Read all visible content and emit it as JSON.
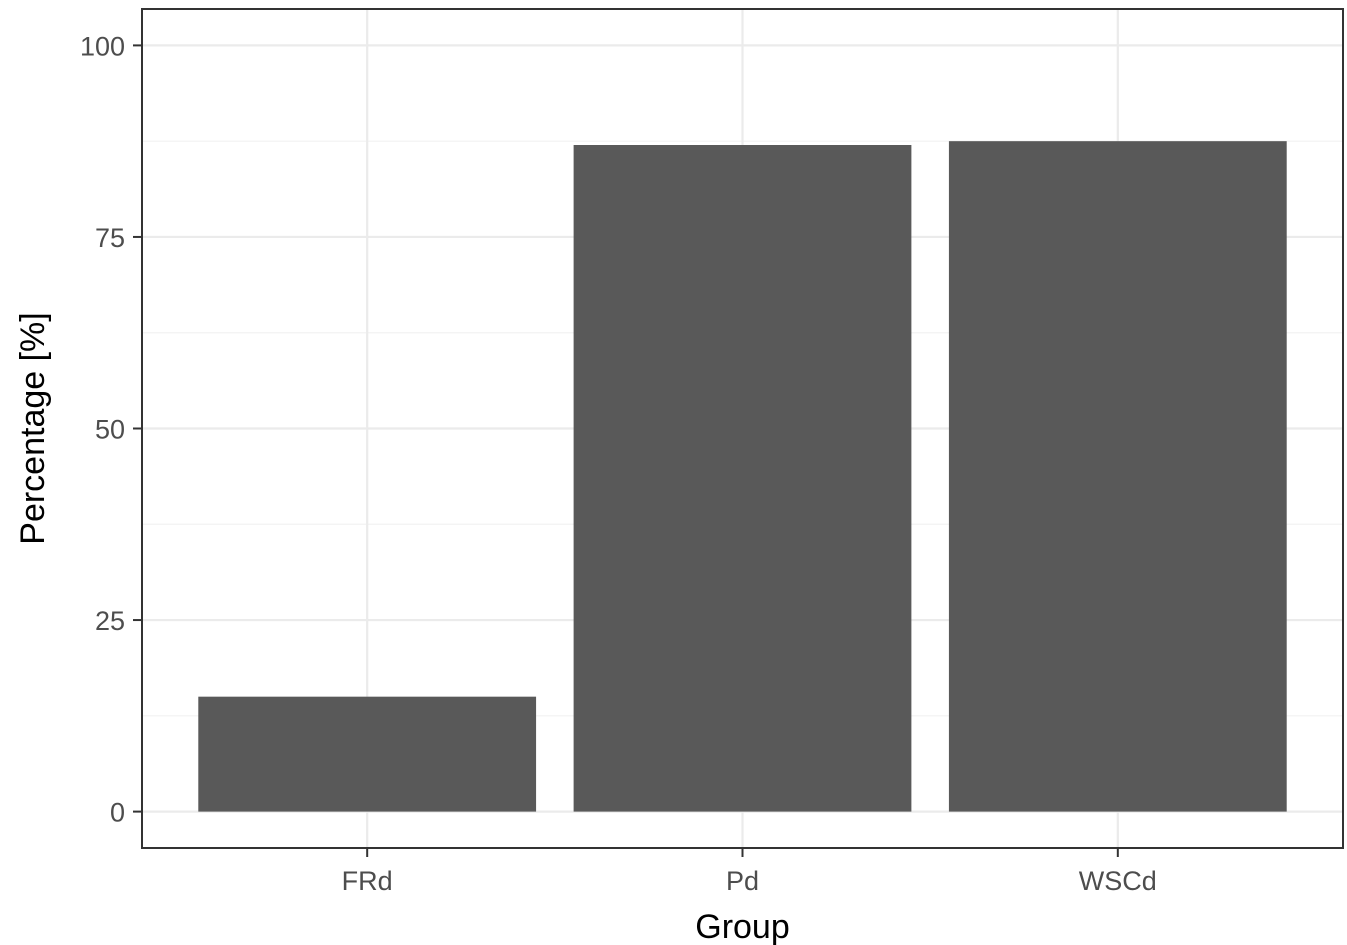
{
  "chart_data": {
    "type": "bar",
    "xlabel": "Group",
    "ylabel": "Percentage [%]",
    "categories": [
      "FRd",
      "Pd",
      "WSCd"
    ],
    "values": [
      15,
      87,
      87.5
    ],
    "ylim": [
      -4.75,
      104.75
    ],
    "yticks": [
      0,
      25,
      50,
      75,
      100
    ],
    "ytick_labels": [
      "0",
      "25",
      "50",
      "75",
      "100"
    ],
    "grid": true,
    "legend": "none",
    "colors": {
      "bar": "#595959",
      "background": "#ffffff",
      "grid_major": "#ebebeb",
      "grid_minor": "#f2f2f2",
      "border": "#333333",
      "tick_label": "#4d4d4d"
    }
  }
}
